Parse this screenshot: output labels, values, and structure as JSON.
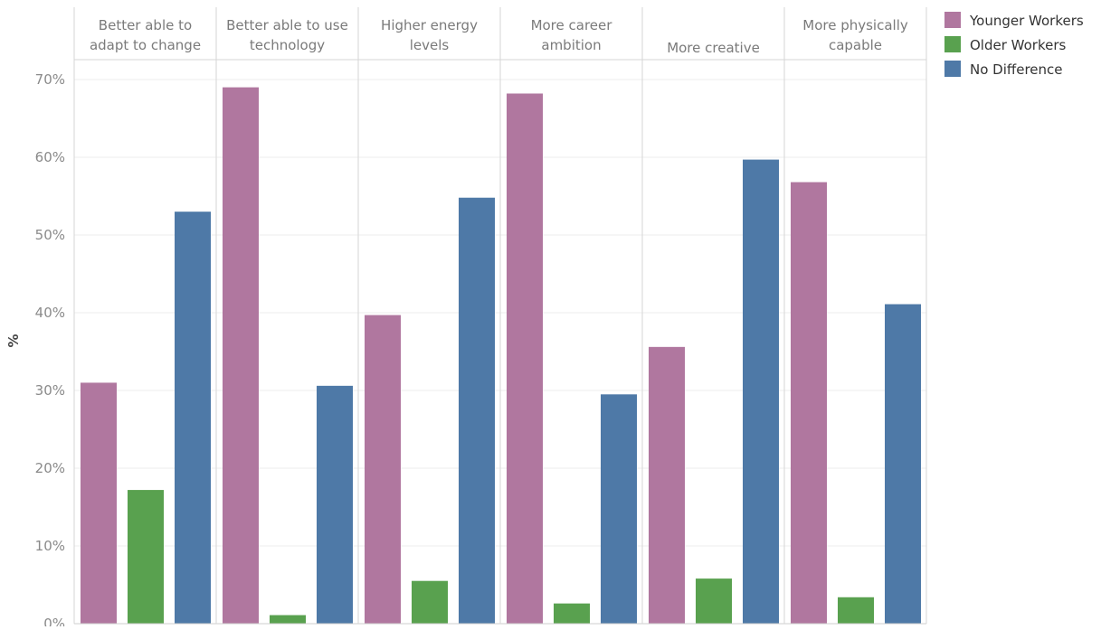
{
  "chart_data": {
    "type": "bar",
    "title": "",
    "xlabel": "",
    "ylabel": "%",
    "ylim": [
      0,
      73
    ],
    "y_ticks": [
      0,
      10,
      20,
      30,
      40,
      50,
      60,
      70
    ],
    "y_tick_format": "{v}%",
    "grid": true,
    "legend_position": "top-right",
    "categories": [
      [
        "Better able to",
        "adapt to change"
      ],
      [
        "Better able to use",
        "technology"
      ],
      [
        "Higher energy",
        "levels"
      ],
      [
        "More career",
        "ambition"
      ],
      [
        "More creative"
      ],
      [
        "More physically",
        "capable"
      ]
    ],
    "series": [
      {
        "name": "Younger Workers",
        "color": "#b0779f",
        "values": [
          31,
          69,
          39.7,
          68.2,
          35.6,
          56.8
        ]
      },
      {
        "name": "Older Workers",
        "color": "#59a14f",
        "values": [
          17.2,
          1.1,
          5.5,
          2.6,
          5.8,
          3.4
        ]
      },
      {
        "name": "No Difference",
        "color": "#4e79a7",
        "values": [
          53,
          30.6,
          54.8,
          29.5,
          59.7,
          41.1
        ]
      }
    ]
  }
}
